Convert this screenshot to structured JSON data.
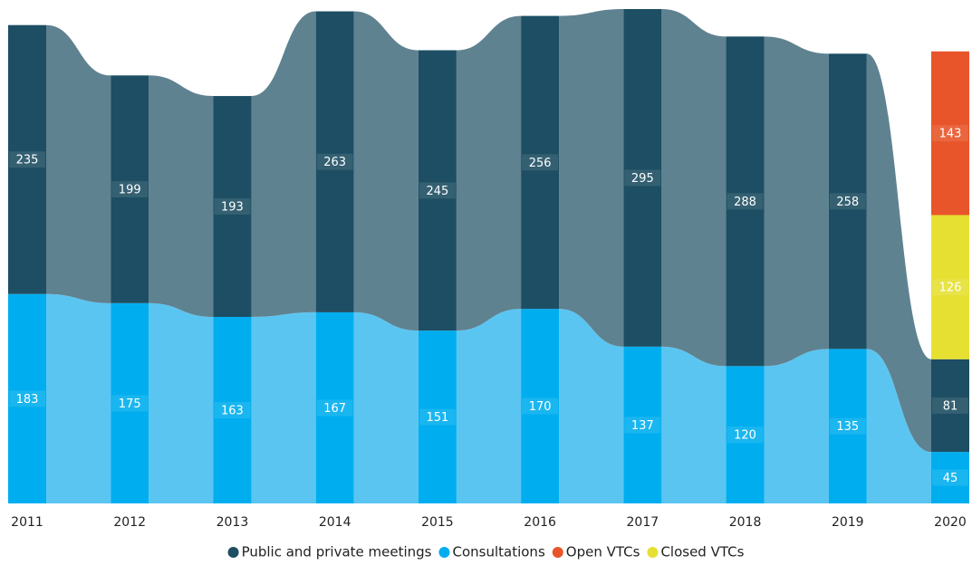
{
  "chart_data": {
    "type": "bar",
    "stacked": true,
    "legend": "bottom",
    "categories": [
      "2011",
      "2012",
      "2013",
      "2014",
      "2015",
      "2016",
      "2017",
      "2018",
      "2019",
      "2020"
    ],
    "series": [
      {
        "name": "Public and private meetings",
        "color": "#1d4e63",
        "flow_color": "#5f8290",
        "values": [
          235,
          199,
          193,
          263,
          245,
          256,
          295,
          288,
          258,
          81
        ]
      },
      {
        "name": "Consultations",
        "color": "#00aeef",
        "flow_color": "#5bc5f2",
        "values": [
          183,
          175,
          163,
          167,
          151,
          170,
          137,
          120,
          135,
          45
        ]
      },
      {
        "name": "Open VTCs",
        "color": "#e8552a",
        "values": [
          null,
          null,
          null,
          null,
          null,
          null,
          null,
          null,
          null,
          143
        ]
      },
      {
        "name": "Closed VTCs",
        "color": "#e6e033",
        "values": [
          null,
          null,
          null,
          null,
          null,
          null,
          null,
          null,
          null,
          126
        ]
      }
    ],
    "stack_order": [
      1,
      0,
      3,
      2
    ]
  }
}
